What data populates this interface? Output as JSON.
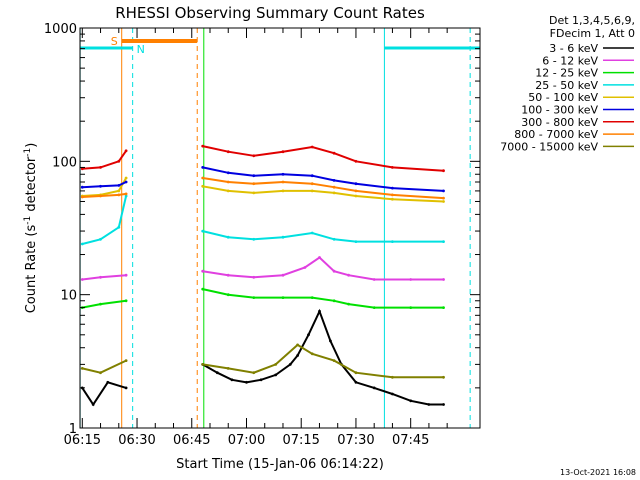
{
  "chart_data": {
    "type": "line",
    "title": "RHESSI Observing Summary Count Rates",
    "xlabel": "Start Time (15-Jan-06 06:14:22)",
    "ylabel_main": "Count Rate (s",
    "ylabel_sup1": "-1",
    "ylabel_mid": " detector",
    "ylabel_sup2": "-1",
    "ylabel_end": ")",
    "yscale": "log",
    "ylim": [
      1,
      1000
    ],
    "x_ticks": [
      "06:15",
      "06:30",
      "06:45",
      "07:00",
      "07:15",
      "07:30",
      "07:45"
    ],
    "x_tick_minutes": [
      15,
      30,
      45,
      60,
      75,
      90,
      105
    ],
    "xlim_minutes": [
      14.37,
      124
    ],
    "y_ticks": [
      "1",
      "10",
      "100",
      "1000"
    ],
    "y_tick_values": [
      1,
      10,
      100,
      1000
    ],
    "legend_header": [
      "Det 1,3,4,5,6,9,",
      "FDecim 1, Att 0"
    ],
    "legend_position": "top-right",
    "series": [
      {
        "name": "3 - 6 keV",
        "color": "#000000",
        "x": [
          15,
          18,
          22,
          27,
          48,
          52,
          56,
          60,
          64,
          68,
          72,
          74,
          77,
          80,
          83,
          86,
          90,
          95,
          100,
          105,
          110,
          114
        ],
        "values": [
          2.0,
          1.5,
          2.2,
          2.0,
          3.0,
          2.6,
          2.3,
          2.2,
          2.3,
          2.5,
          3.0,
          3.5,
          5.0,
          7.5,
          4.5,
          3.0,
          2.2,
          2.0,
          1.8,
          1.6,
          1.5,
          1.5
        ]
      },
      {
        "name": "6 - 12 keV",
        "color": "#e040e0",
        "x": [
          15,
          20,
          27,
          48,
          55,
          62,
          70,
          76,
          80,
          84,
          88,
          95,
          105,
          114
        ],
        "values": [
          13,
          13.5,
          14,
          15,
          14,
          13.5,
          14,
          16,
          19,
          15,
          14,
          13,
          13,
          13
        ]
      },
      {
        "name": "12 - 25 keV",
        "color": "#00e000",
        "x": [
          15,
          20,
          27,
          48,
          55,
          62,
          70,
          78,
          84,
          88,
          95,
          105,
          114
        ],
        "values": [
          8,
          8.5,
          9,
          11,
          10,
          9.5,
          9.5,
          9.5,
          9,
          8.5,
          8,
          8,
          8
        ]
      },
      {
        "name": "25 - 50 keV",
        "color": "#00e0e0",
        "x": [
          15,
          20,
          25,
          27,
          48,
          55,
          62,
          70,
          78,
          84,
          90,
          100,
          114
        ],
        "values": [
          24,
          26,
          32,
          55,
          30,
          27,
          26,
          27,
          29,
          26,
          25,
          25,
          25
        ]
      },
      {
        "name": "50 - 100 keV",
        "color": "#e0c000",
        "x": [
          15,
          20,
          25,
          27,
          48,
          55,
          62,
          70,
          78,
          84,
          90,
          100,
          114
        ],
        "values": [
          55,
          56,
          60,
          75,
          65,
          60,
          58,
          60,
          60,
          58,
          55,
          52,
          50
        ]
      },
      {
        "name": "100 - 300 keV",
        "color": "#0000e0",
        "x": [
          15,
          20,
          25,
          27,
          48,
          55,
          62,
          70,
          78,
          84,
          90,
          100,
          114
        ],
        "values": [
          64,
          65,
          66,
          70,
          90,
          82,
          78,
          80,
          78,
          72,
          68,
          63,
          60
        ]
      },
      {
        "name": "300 - 800 keV",
        "color": "#e00000",
        "x": [
          15,
          20,
          25,
          27,
          48,
          55,
          62,
          70,
          78,
          84,
          90,
          100,
          114
        ],
        "values": [
          88,
          90,
          100,
          120,
          130,
          118,
          110,
          118,
          128,
          115,
          100,
          90,
          85
        ]
      },
      {
        "name": "800 - 7000 keV",
        "color": "#ff8000",
        "x": [
          15,
          20,
          25,
          27,
          48,
          55,
          62,
          70,
          78,
          84,
          90,
          100,
          114
        ],
        "values": [
          54,
          55,
          56,
          57,
          75,
          70,
          68,
          70,
          68,
          64,
          60,
          56,
          53
        ]
      },
      {
        "name": "7000 - 15000 keV",
        "color": "#808000",
        "x": [
          15,
          20,
          27,
          48,
          55,
          62,
          68,
          74,
          78,
          84,
          90,
          100,
          114
        ],
        "values": [
          2.8,
          2.6,
          3.2,
          3.0,
          2.8,
          2.6,
          3.0,
          4.2,
          3.6,
          3.2,
          2.6,
          2.4,
          2.4
        ]
      }
    ],
    "annotations": [
      {
        "label": "S",
        "color": "#ff8000"
      },
      {
        "label": "N",
        "color": "#00e0e0"
      }
    ],
    "timestamp": "13-Oct-2021 16:08"
  }
}
